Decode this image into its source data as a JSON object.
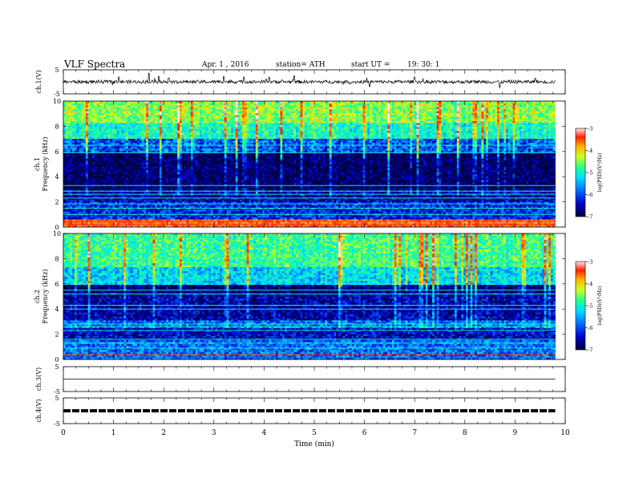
{
  "header": {
    "title": "VLF  Spectra",
    "date": "Apr. 1  , 2016",
    "station": "station= ATH",
    "start_label": "start  UT  =",
    "start_value": "19: 30: 1"
  },
  "chart_data": [
    {
      "type": "line",
      "panel": "ch1-waveform",
      "ylabel": "ch.1(V)",
      "ylim": [
        -5,
        5
      ],
      "yticks": [
        "5",
        "-5"
      ],
      "baseline": 0,
      "noise_amplitude": 0.7,
      "spikes": [
        {
          "t": 1.1,
          "v": 2.0
        },
        {
          "t": 1.7,
          "v": 3.6
        },
        {
          "t": 1.9,
          "v": 2.3
        },
        {
          "t": 2.1,
          "v": 1.6
        },
        {
          "t": 3.2,
          "v": 2.2
        },
        {
          "t": 3.6,
          "v": 2.0
        },
        {
          "t": 4.1,
          "v": 2.0
        },
        {
          "t": 4.6,
          "v": 2.5
        },
        {
          "t": 6.1,
          "v": -2.0
        },
        {
          "t": 7.0,
          "v": 2.0
        },
        {
          "t": 8.7,
          "v": -2.3
        },
        {
          "t": 9.4,
          "v": 1.5
        }
      ]
    },
    {
      "type": "heatmap",
      "panel": "ch1-spectrogram",
      "ylabel": "ch.1\nFrequency  (kHz)",
      "ylim": [
        0,
        10
      ],
      "yticks": [
        "0",
        "2",
        "4",
        "6",
        "8",
        "10"
      ],
      "bands": [
        {
          "f0": 0.0,
          "f1": 0.6,
          "level": -3.6
        },
        {
          "f0": 0.6,
          "f1": 2.0,
          "level": -6.3
        },
        {
          "f0": 2.0,
          "f1": 3.0,
          "level": -6.6
        },
        {
          "f0": 3.0,
          "f1": 5.9,
          "level": -6.9
        },
        {
          "f0": 5.9,
          "f1": 7.0,
          "level": -6.1
        },
        {
          "f0": 7.0,
          "f1": 8.3,
          "level": -5.2
        },
        {
          "f0": 8.3,
          "f1": 10.0,
          "level": -4.7
        }
      ],
      "lines_khz": [
        0.2,
        0.45,
        1.0,
        1.5,
        1.85,
        2.3,
        2.6,
        2.85,
        3.3,
        5.9,
        6.5
      ],
      "colorbar": {
        "label": "log(PSD)(V²/Hz)",
        "ticks": [
          "-3",
          "-4",
          "-5",
          "-6",
          "-7"
        ],
        "range": [
          -7,
          -3
        ]
      }
    },
    {
      "type": "heatmap",
      "panel": "ch2-spectrogram",
      "ylabel": "ch.2\nFrequency  (kHz)",
      "ylim": [
        0,
        10
      ],
      "yticks": [
        "0",
        "2",
        "4",
        "6",
        "8",
        "10"
      ],
      "bands": [
        {
          "f0": 0.0,
          "f1": 1.6,
          "level": -6.0
        },
        {
          "f0": 1.6,
          "f1": 2.5,
          "level": -6.5
        },
        {
          "f0": 2.5,
          "f1": 3.2,
          "level": -6.0
        },
        {
          "f0": 3.2,
          "f1": 5.3,
          "level": -6.6
        },
        {
          "f0": 5.3,
          "f1": 6.0,
          "level": -6.8
        },
        {
          "f0": 6.0,
          "f1": 7.3,
          "level": -5.5
        },
        {
          "f0": 7.3,
          "f1": 10.0,
          "level": -5.0
        }
      ],
      "lines_khz": [
        0.15,
        0.4,
        0.9,
        1.3,
        1.6,
        2.3,
        2.6,
        2.8,
        4.0,
        4.3,
        5.2,
        5.5
      ],
      "colorbar": {
        "label": "log(PSD)(V²/Hz)",
        "ticks": [
          "-3",
          "-4",
          "-5",
          "-6",
          "-7"
        ],
        "range": [
          -7,
          -3
        ]
      }
    },
    {
      "type": "line",
      "panel": "ch3-waveform",
      "ylabel": "ch.3(V)",
      "ylim": [
        -5,
        5
      ],
      "yticks": [
        "5",
        "-5"
      ],
      "baseline": 0
    },
    {
      "type": "line",
      "panel": "ch4-waveform",
      "ylabel": "ch.4(V)",
      "ylim": [
        -5,
        5
      ],
      "yticks": [
        "5",
        "-5"
      ],
      "baseline": 0,
      "style": "dashed-thick"
    }
  ],
  "x_axis": {
    "label": "Time  (min)",
    "xlim": [
      0,
      10
    ],
    "data_end": 9.8,
    "ticks": [
      "0",
      "1",
      "2",
      "3",
      "4",
      "5",
      "6",
      "7",
      "8",
      "9",
      "10"
    ]
  },
  "colors": {
    "colormap": [
      "#000040",
      "#0000c8",
      "#0070ff",
      "#00e0ff",
      "#20ff90",
      "#d0ff20",
      "#ffb000",
      "#ff2000",
      "#ffe8e8"
    ],
    "trace": "#000000"
  }
}
